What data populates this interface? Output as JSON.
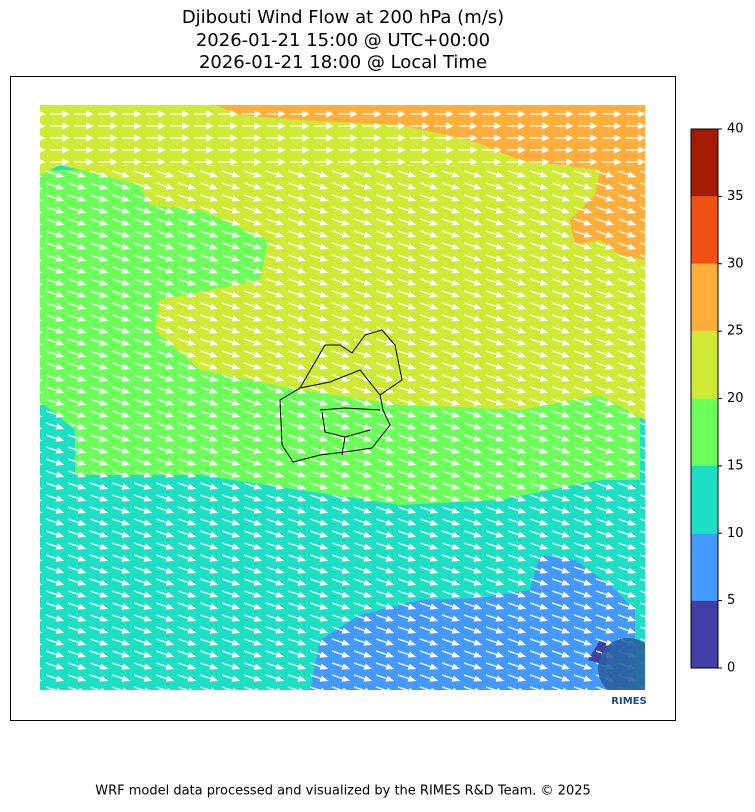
{
  "title": [
    "Djibouti Wind Flow at 200 hPa (m/s)",
    "2026-01-21 15:00 @ UTC+00:00",
    "2026-01-21 18:00 @ Local Time"
  ],
  "colorbar": {
    "ticks": [
      0,
      5,
      10,
      15,
      20,
      25,
      30,
      35,
      40
    ],
    "colors": [
      "#3f3fa6",
      "#4499ff",
      "#1ddfc4",
      "#6cff5a",
      "#cfe934",
      "#ffae3b",
      "#f05012",
      "#a51a04"
    ]
  },
  "logo": {
    "text": "RIMES"
  },
  "footer": "WRF model data processed and visualized by the RIMES R&D Team. © 2025"
}
